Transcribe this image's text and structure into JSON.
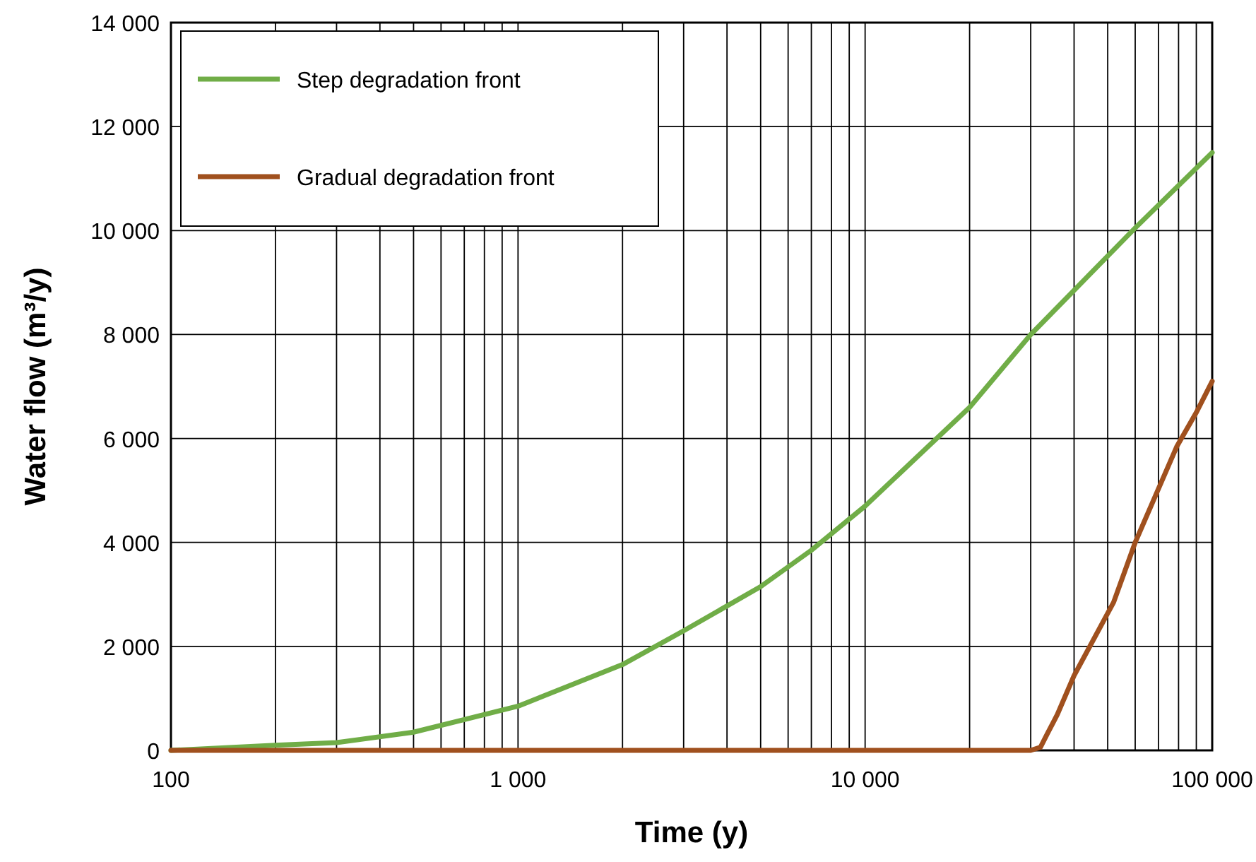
{
  "chart_data": {
    "type": "line",
    "xlabel": "Time (y)",
    "ylabel": "Water flow (m³/y)",
    "log": "x",
    "grid": true,
    "legend": "top left",
    "marker": "none",
    "line_style": "solid",
    "xlim": [
      100,
      100000
    ],
    "ylim": [
      0,
      14000
    ],
    "xticks": [
      {
        "value": 100,
        "label": "100"
      },
      {
        "value": 200,
        "label": null
      },
      {
        "value": 300,
        "label": null
      },
      {
        "value": 400,
        "label": null
      },
      {
        "value": 500,
        "label": null
      },
      {
        "value": 600,
        "label": null
      },
      {
        "value": 700,
        "label": null
      },
      {
        "value": 800,
        "label": null
      },
      {
        "value": 900,
        "label": null
      },
      {
        "value": 1000,
        "label": "1 000"
      },
      {
        "value": 2000,
        "label": null
      },
      {
        "value": 3000,
        "label": null
      },
      {
        "value": 4000,
        "label": null
      },
      {
        "value": 5000,
        "label": null
      },
      {
        "value": 6000,
        "label": null
      },
      {
        "value": 7000,
        "label": null
      },
      {
        "value": 8000,
        "label": null
      },
      {
        "value": 9000,
        "label": null
      },
      {
        "value": 10000,
        "label": "10 000"
      },
      {
        "value": 20000,
        "label": null
      },
      {
        "value": 30000,
        "label": null
      },
      {
        "value": 40000,
        "label": null
      },
      {
        "value": 50000,
        "label": null
      },
      {
        "value": 60000,
        "label": null
      },
      {
        "value": 70000,
        "label": null
      },
      {
        "value": 80000,
        "label": null
      },
      {
        "value": 90000,
        "label": null
      },
      {
        "value": 100000,
        "label": "100 000"
      }
    ],
    "yticks": [
      0,
      {
        "value": 2000,
        "label": "2 000"
      },
      {
        "value": 4000,
        "label": "4 000"
      },
      {
        "value": 6000,
        "label": "6 000"
      },
      {
        "value": 8000,
        "label": "8 000"
      },
      {
        "value": 10000,
        "label": "10 000"
      },
      {
        "value": 12000,
        "label": "12 000"
      },
      {
        "value": 14000,
        "label": "14 000"
      }
    ],
    "series": [
      {
        "name": "Step degradation front",
        "color": "#70ad47",
        "x": [
          100,
          200,
          300,
          500,
          1000,
          2000,
          3000,
          5000,
          7000,
          10000,
          20000,
          30000,
          60000,
          100000
        ],
        "values": [
          0,
          100,
          150,
          350,
          850,
          1650,
          2300,
          3150,
          3850,
          4700,
          6600,
          8000,
          10050,
          11500
        ]
      },
      {
        "name": "Gradual degradation front",
        "color": "#a0501e",
        "x": [
          100,
          30000,
          32000,
          33500,
          35800,
          40000,
          52000,
          60000,
          79000,
          90000,
          100000
        ],
        "values": [
          0,
          0,
          60,
          320,
          690,
          1440,
          2850,
          4000,
          5840,
          6500,
          7100
        ]
      }
    ]
  }
}
